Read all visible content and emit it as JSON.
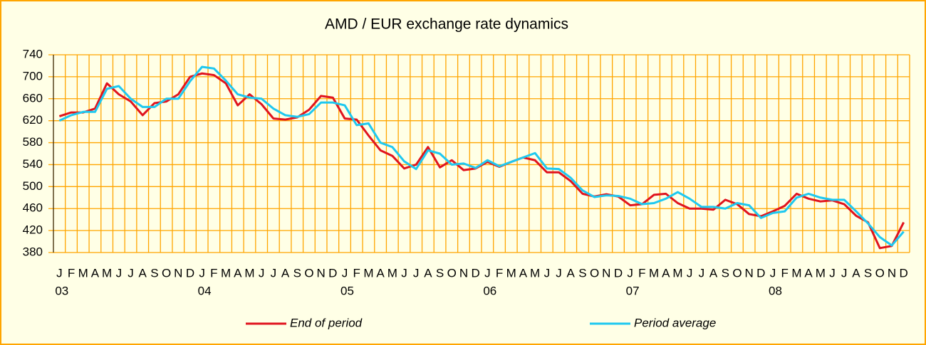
{
  "chart_data": {
    "type": "line",
    "title": "AMD / EUR exchange rate dynamics",
    "categories": [
      "J",
      "F",
      "M",
      "A",
      "M",
      "J",
      "J",
      "A",
      "S",
      "O",
      "N",
      "D",
      "J",
      "F",
      "M",
      "A",
      "M",
      "J",
      "J",
      "A",
      "S",
      "O",
      "N",
      "D",
      "J",
      "F",
      "M",
      "A",
      "M",
      "J",
      "J",
      "A",
      "S",
      "O",
      "N",
      "D",
      "J",
      "F",
      "M",
      "A",
      "M",
      "J",
      "J",
      "A",
      "S",
      "O",
      "N",
      "D",
      "J",
      "F",
      "M",
      "A",
      "M",
      "J",
      "J",
      "A",
      "S",
      "O",
      "N",
      "D",
      "J",
      "F",
      "M",
      "A",
      "M",
      "J",
      "J",
      "A",
      "S",
      "O",
      "N",
      "D"
    ],
    "year_labels": [
      "03",
      "04",
      "05",
      "06",
      "07",
      "08"
    ],
    "series": [
      {
        "name": "End of period",
        "color": "#e0141e",
        "values": [
          628,
          635,
          635,
          642,
          688,
          668,
          655,
          630,
          652,
          655,
          668,
          700,
          706,
          703,
          688,
          648,
          668,
          650,
          624,
          622,
          626,
          640,
          665,
          662,
          624,
          622,
          593,
          566,
          556,
          533,
          540,
          572,
          535,
          548,
          530,
          533,
          545,
          536,
          545,
          553,
          548,
          526,
          526,
          510,
          487,
          482,
          486,
          482,
          466,
          468,
          485,
          487,
          470,
          460,
          460,
          458,
          476,
          468,
          450,
          446,
          455,
          465,
          487,
          478,
          473,
          475,
          468,
          447,
          435,
          388,
          392,
          435
        ]
      },
      {
        "name": "Period average",
        "color": "#1ec8f0",
        "values": [
          620,
          630,
          636,
          636,
          678,
          683,
          660,
          645,
          645,
          660,
          660,
          692,
          718,
          715,
          693,
          668,
          662,
          660,
          642,
          630,
          627,
          632,
          653,
          653,
          648,
          612,
          615,
          580,
          572,
          546,
          532,
          566,
          560,
          540,
          542,
          534,
          548,
          537,
          545,
          553,
          561,
          533,
          532,
          516,
          493,
          481,
          484,
          483,
          478,
          468,
          470,
          478,
          490,
          478,
          463,
          463,
          460,
          470,
          466,
          443,
          452,
          455,
          480,
          487,
          480,
          476,
          476,
          455,
          433,
          408,
          393,
          418
        ]
      }
    ],
    "ylim": [
      380,
      740
    ],
    "yticks": [
      380,
      420,
      460,
      500,
      540,
      580,
      620,
      660,
      700,
      740
    ],
    "grid": true,
    "grid_color": "#ffa500",
    "legend": "bottom"
  }
}
